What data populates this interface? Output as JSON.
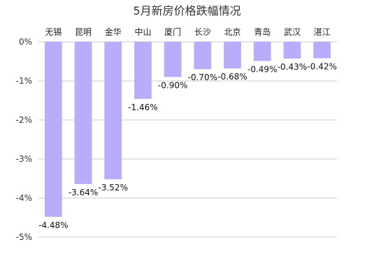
{
  "chart_data": {
    "type": "bar",
    "title": "5月新房价格跌幅情况",
    "categories": [
      "无锡",
      "昆明",
      "金华",
      "中山",
      "厦门",
      "长沙",
      "北京",
      "青岛",
      "武汉",
      "湛江"
    ],
    "values": [
      -4.48,
      -3.64,
      -3.52,
      -1.46,
      -0.9,
      -0.7,
      -0.68,
      -0.49,
      -0.43,
      -0.42
    ],
    "data_labels": [
      "-4.48%",
      "-3.64%",
      "-3.52%",
      "-1.46%",
      "-0.90%",
      "-0.70%",
      "-0.68%",
      "-0.49%",
      "-0.43%",
      "-0.42%"
    ],
    "ylim": [
      -5,
      0
    ],
    "yticks": [
      0,
      -1,
      -2,
      -3,
      -4,
      -5
    ],
    "ytick_labels": [
      "0%",
      "-1%",
      "-2%",
      "-3%",
      "-4%",
      "-5%"
    ],
    "grid": true,
    "category_axis_position": "top",
    "colors": {
      "bar": "#b8adfa",
      "grid": "#cccccc"
    }
  }
}
